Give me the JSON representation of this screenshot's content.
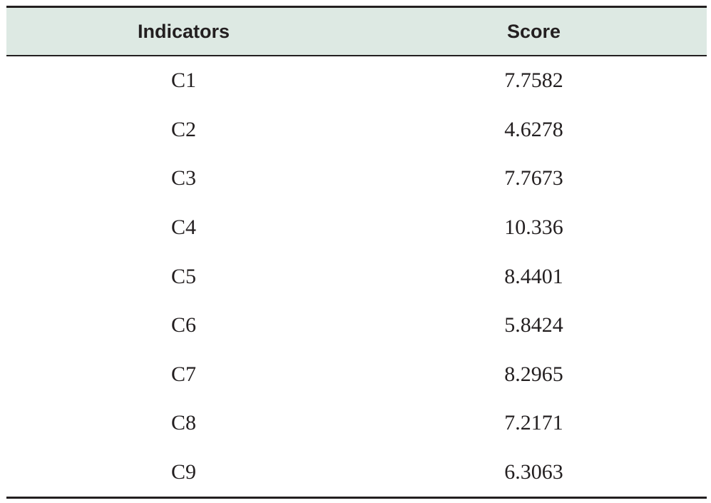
{
  "table": {
    "headers": {
      "indicator": "Indicators",
      "score": "Score"
    },
    "rows": [
      {
        "indicator": "C1",
        "score": "7.7582"
      },
      {
        "indicator": "C2",
        "score": "4.6278"
      },
      {
        "indicator": "C3",
        "score": "7.7673"
      },
      {
        "indicator": "C4",
        "score": "10.336"
      },
      {
        "indicator": "C5",
        "score": "8.4401"
      },
      {
        "indicator": "C6",
        "score": "5.8424"
      },
      {
        "indicator": "C7",
        "score": "8.2965"
      },
      {
        "indicator": "C8",
        "score": "7.2171"
      },
      {
        "indicator": "C9",
        "score": "6.3063"
      }
    ]
  },
  "colors": {
    "header_background": "#dde9e3",
    "rule_color": "#231f20",
    "text_color": "#231f20"
  }
}
